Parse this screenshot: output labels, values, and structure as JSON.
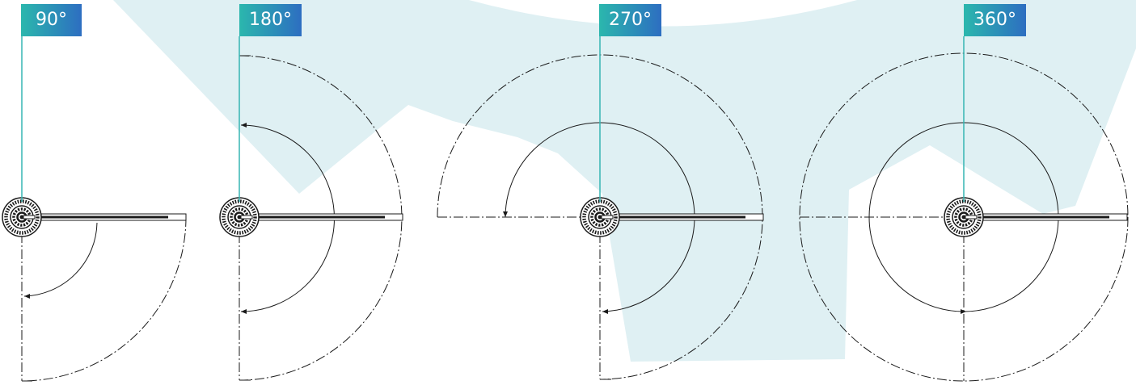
{
  "labels": {
    "a90": "90°",
    "a180": "180°",
    "a270": "270°",
    "a360": "360°"
  },
  "colors": {
    "background": "#ffffff",
    "watermark": "#dff0f3",
    "accent_line": "#36b6b3",
    "label_gradient_start": "#2bb7ad",
    "label_gradient_end": "#2d6ec1",
    "drawing_line": "#1a1a1a"
  },
  "icons": {
    "hinge": "hinge-knob-icon",
    "watermark": "brand-watermark-shape"
  }
}
